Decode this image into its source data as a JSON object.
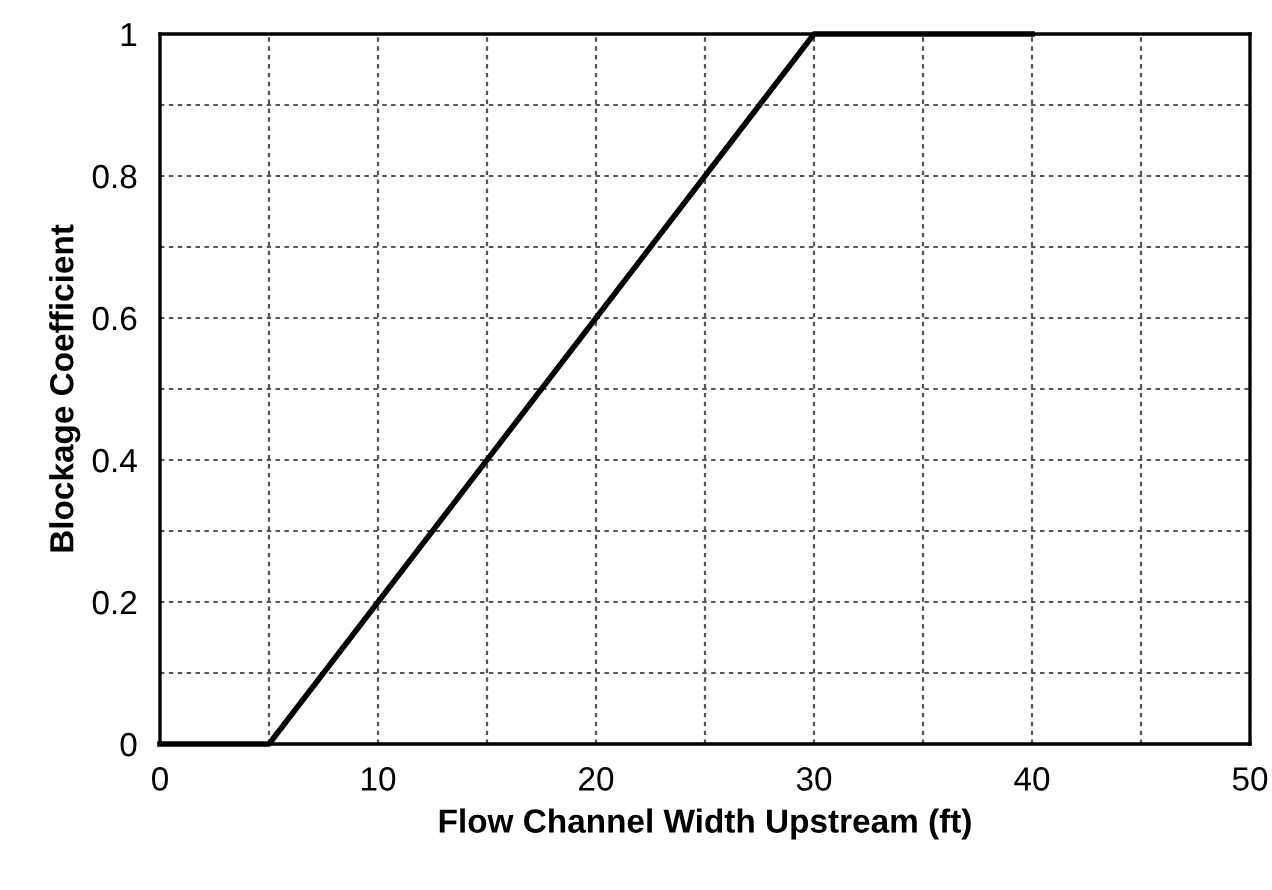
{
  "chart_data": {
    "type": "line",
    "xlabel": "Flow Channel Width Upstream (ft)",
    "ylabel": "Blockage Coefficient",
    "x": [
      0,
      5,
      30,
      40
    ],
    "series": [
      {
        "color": "#000000",
        "values": [
          0,
          0,
          1,
          1
        ]
      }
    ],
    "xlim": [
      0,
      50
    ],
    "ylim": [
      0,
      1
    ],
    "xticks": [
      0,
      {
        "value": 5,
        "label": null
      },
      10,
      {
        "value": 15,
        "label": null
      },
      20,
      {
        "value": 25,
        "label": null
      },
      30,
      {
        "value": 35,
        "label": null
      },
      40,
      {
        "value": 45,
        "label": null
      },
      50
    ],
    "yticks": [
      0,
      {
        "value": 0.1,
        "label": null
      },
      0.2,
      {
        "value": 0.3,
        "label": null
      },
      0.4,
      {
        "value": 0.5,
        "label": null
      },
      0.6,
      {
        "value": 0.7,
        "label": null
      },
      0.8,
      {
        "value": 0.9,
        "label": null
      },
      1
    ],
    "grid": true,
    "line_style": "solid",
    "marker": "none"
  }
}
